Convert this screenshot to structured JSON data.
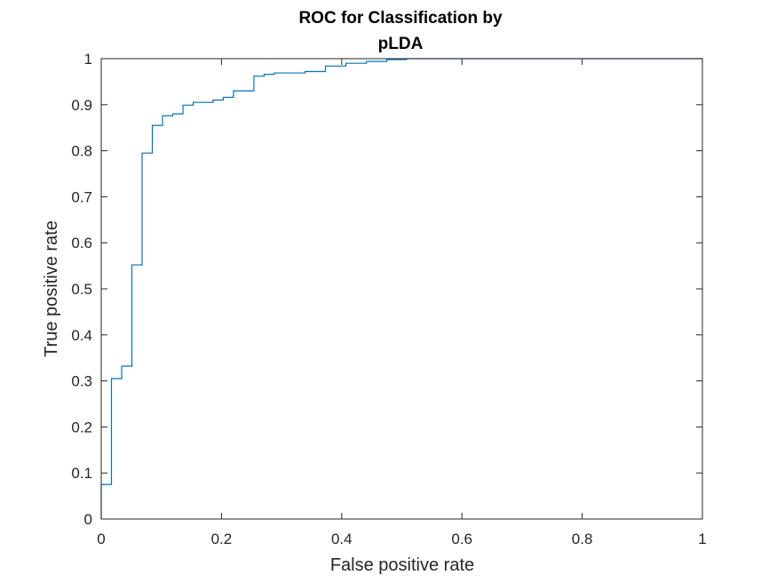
{
  "chart_data": {
    "type": "line",
    "title_lines": [
      "ROC for Classification by",
      "pLDA"
    ],
    "xlabel": "False positive rate",
    "ylabel": "True positive rate",
    "xlim": [
      0,
      1
    ],
    "ylim": [
      0,
      1
    ],
    "x_ticks": [
      "0",
      "0.2",
      "0.4",
      "0.6",
      "0.8",
      "1"
    ],
    "y_ticks": [
      "0",
      "0.1",
      "0.2",
      "0.3",
      "0.4",
      "0.5",
      "0.6",
      "0.7",
      "0.8",
      "0.9",
      "1"
    ],
    "grid": false,
    "legend": "none",
    "series": [
      {
        "color": "#0072BD",
        "step": true,
        "points": [
          [
            0,
            0
          ],
          [
            0,
            0.075
          ],
          [
            0.017,
            0.075
          ],
          [
            0.017,
            0.305
          ],
          [
            0.034,
            0.305
          ],
          [
            0.034,
            0.332
          ],
          [
            0.051,
            0.332
          ],
          [
            0.051,
            0.552
          ],
          [
            0.068,
            0.552
          ],
          [
            0.068,
            0.795
          ],
          [
            0.085,
            0.795
          ],
          [
            0.085,
            0.855
          ],
          [
            0.102,
            0.855
          ],
          [
            0.102,
            0.876
          ],
          [
            0.119,
            0.876
          ],
          [
            0.119,
            0.88
          ],
          [
            0.136,
            0.88
          ],
          [
            0.136,
            0.899
          ],
          [
            0.153,
            0.899
          ],
          [
            0.153,
            0.905
          ],
          [
            0.186,
            0.905
          ],
          [
            0.186,
            0.91
          ],
          [
            0.203,
            0.91
          ],
          [
            0.203,
            0.916
          ],
          [
            0.22,
            0.916
          ],
          [
            0.22,
            0.93
          ],
          [
            0.254,
            0.93
          ],
          [
            0.254,
            0.962
          ],
          [
            0.271,
            0.962
          ],
          [
            0.271,
            0.966
          ],
          [
            0.288,
            0.966
          ],
          [
            0.288,
            0.969
          ],
          [
            0.339,
            0.969
          ],
          [
            0.339,
            0.972
          ],
          [
            0.373,
            0.972
          ],
          [
            0.373,
            0.984
          ],
          [
            0.407,
            0.984
          ],
          [
            0.407,
            0.99
          ],
          [
            0.441,
            0.99
          ],
          [
            0.441,
            0.994
          ],
          [
            0.475,
            0.994
          ],
          [
            0.475,
            0.998
          ],
          [
            0.508,
            0.998
          ],
          [
            0.508,
            1.0
          ],
          [
            1.0,
            1.0
          ]
        ]
      }
    ]
  }
}
